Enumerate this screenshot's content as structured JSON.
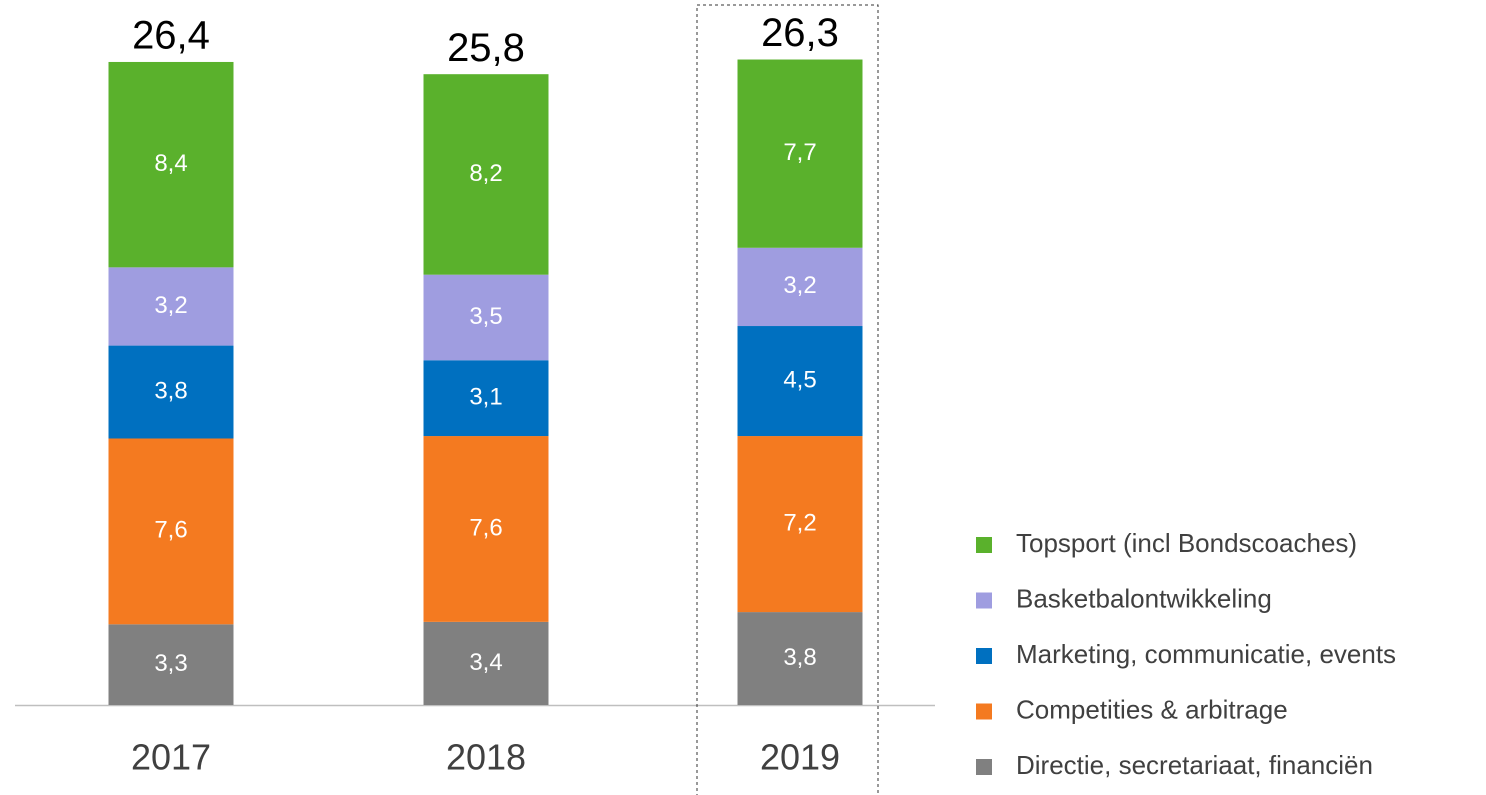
{
  "chart_data": {
    "type": "stacked-bar",
    "categories": [
      "2017",
      "2018",
      "2019"
    ],
    "series": [
      {
        "name": "Directie, secretariaat, financiën",
        "color": "#808080",
        "values": [
          3.3,
          3.4,
          3.8
        ],
        "value_labels": [
          "3,3",
          "3,4",
          "3,8"
        ]
      },
      {
        "name": "Competities & arbitrage",
        "color": "#f47a20",
        "values": [
          7.6,
          7.6,
          7.2
        ],
        "value_labels": [
          "7,6",
          "7,6",
          "7,2"
        ]
      },
      {
        "name": "Marketing, communicatie, events",
        "color": "#0070c0",
        "values": [
          3.8,
          3.1,
          4.5
        ],
        "value_labels": [
          "3,8",
          "3,1",
          "4,5"
        ]
      },
      {
        "name": "Basketbalontwikkeling",
        "color": "#9f9de0",
        "values": [
          3.2,
          3.5,
          3.2
        ],
        "value_labels": [
          "3,2",
          "3,5",
          "3,2"
        ]
      },
      {
        "name": "Topsport (incl Bondscoaches)",
        "color": "#5ab12c",
        "values": [
          8.4,
          8.2,
          7.7
        ],
        "value_labels": [
          "8,4",
          "8,2",
          "7,7"
        ]
      }
    ],
    "totals": [
      26.4,
      25.8,
      26.3
    ],
    "total_labels": [
      "26,4",
      "25,8",
      "26,3"
    ],
    "highlight": 2,
    "legend": "right"
  }
}
